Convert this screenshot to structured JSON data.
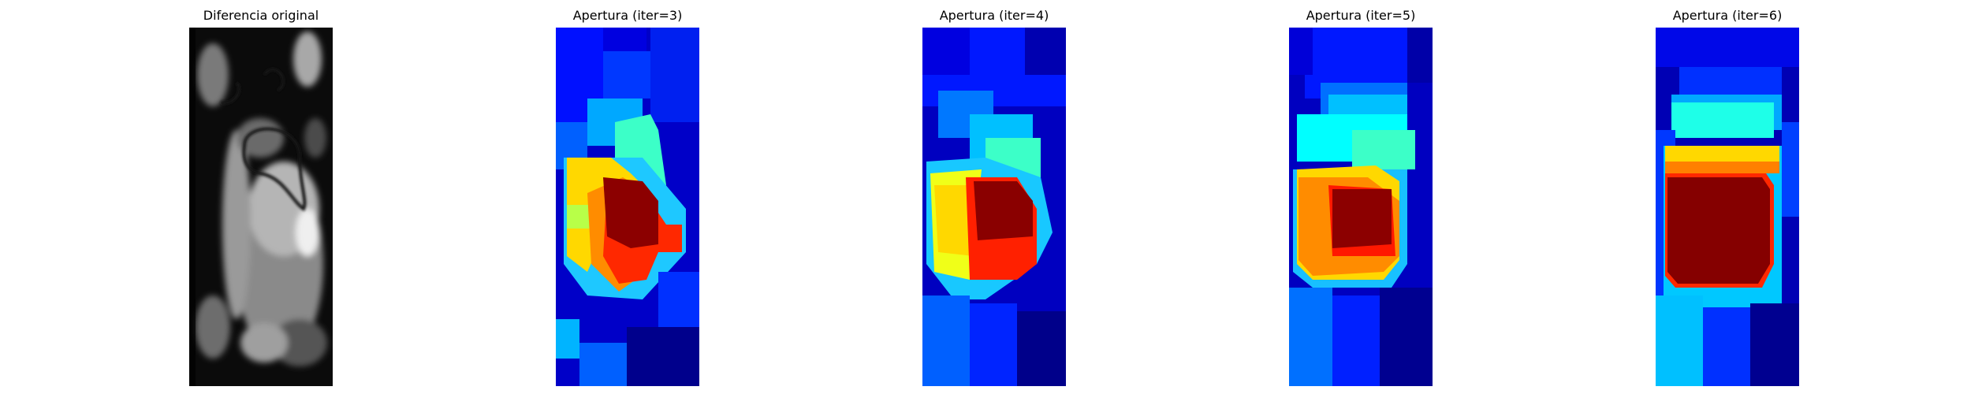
{
  "panels": [
    {
      "title": "Diferencia original",
      "colormap": "gray"
    },
    {
      "title": "Apertura (iter=3)",
      "colormap": "jet"
    },
    {
      "title": "Apertura (iter=4)",
      "colormap": "jet"
    },
    {
      "title": "Apertura (iter=5)",
      "colormap": "jet"
    },
    {
      "title": "Apertura (iter=6)",
      "colormap": "jet"
    }
  ],
  "colors": {
    "jet_low": "#00008f",
    "jet_mid": "#00ffff",
    "jet_high": "#7f0000",
    "background": "#ffffff"
  }
}
